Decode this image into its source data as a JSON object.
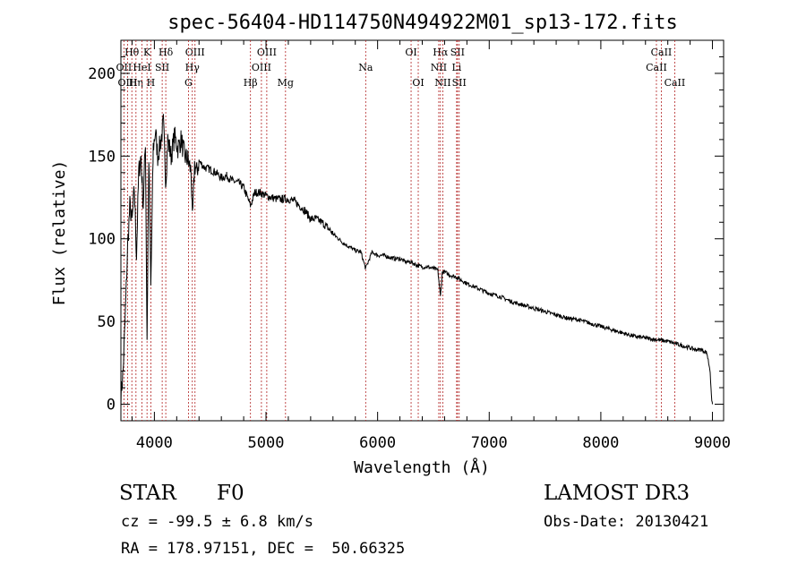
{
  "chart_data": {
    "type": "line",
    "title": "spec-56404-HD114750N494922M01_sp13-172.fits",
    "xlabel": "Wavelength (Å)",
    "ylabel": "Flux (relative)",
    "xlim": [
      3700,
      9100
    ],
    "ylim": [
      -10,
      220
    ],
    "xticks": [
      4000,
      5000,
      6000,
      7000,
      8000,
      9000
    ],
    "yticks": [
      0,
      50,
      100,
      150,
      200
    ],
    "series": [
      {
        "name": "flux",
        "x": [
          3700,
          3720,
          3740,
          3760,
          3780,
          3800,
          3820,
          3840,
          3860,
          3880,
          3900,
          3920,
          3934,
          3950,
          3968,
          3990,
          4010,
          4030,
          4060,
          4080,
          4102,
          4120,
          4150,
          4180,
          4210,
          4240,
          4270,
          4300,
          4330,
          4340,
          4360,
          4380,
          4400,
          4450,
          4500,
          4550,
          4600,
          4650,
          4700,
          4750,
          4800,
          4861,
          4900,
          4950,
          5000,
          5050,
          5100,
          5150,
          5200,
          5250,
          5300,
          5350,
          5400,
          5450,
          5500,
          5550,
          5600,
          5650,
          5700,
          5750,
          5800,
          5850,
          5893,
          5950,
          6000,
          6050,
          6100,
          6150,
          6200,
          6250,
          6300,
          6350,
          6400,
          6450,
          6500,
          6540,
          6563,
          6580,
          6600,
          6650,
          6700,
          6750,
          6800,
          6900,
          7000,
          7100,
          7200,
          7300,
          7400,
          7500,
          7600,
          7700,
          7800,
          7900,
          8000,
          8100,
          8200,
          8300,
          8400,
          8500,
          8600,
          8700,
          8800,
          8850,
          8900,
          8950,
          8980,
          8990,
          9000
        ],
        "y": [
          5,
          20,
          55,
          95,
          120,
          110,
          130,
          90,
          140,
          150,
          120,
          160,
          40,
          150,
          70,
          155,
          165,
          150,
          160,
          170,
          135,
          160,
          150,
          162,
          155,
          160,
          150,
          148,
          140,
          110,
          145,
          140,
          147,
          143,
          142,
          140,
          137,
          138,
          135,
          134,
          131,
          120,
          128,
          128,
          126,
          125,
          124,
          124,
          124,
          123,
          120,
          117,
          112,
          112,
          110,
          107,
          103,
          100,
          97,
          95,
          93,
          92,
          82,
          92,
          90,
          90,
          89,
          88,
          88,
          86,
          86,
          84,
          83,
          83,
          82,
          81,
          65,
          80,
          80,
          78,
          77,
          75,
          73,
          70,
          67,
          65,
          62,
          60,
          58,
          56,
          54,
          52,
          51,
          49,
          47,
          45,
          43,
          41,
          40,
          39,
          38,
          36,
          34,
          33,
          33,
          31,
          20,
          5,
          0
        ]
      }
    ],
    "lines": [
      {
        "label": "Hθ",
        "wavelength": 3798,
        "row": 1
      },
      {
        "label": "OII",
        "wavelength": 3727,
        "row": 2
      },
      {
        "label": "OIII",
        "wavelength": 3760,
        "row": 3
      },
      {
        "label": "Hη",
        "wavelength": 3835,
        "row": 3
      },
      {
        "label": "HeI",
        "wavelength": 3889,
        "row": 2
      },
      {
        "label": "K",
        "wavelength": 3934,
        "row": 1
      },
      {
        "label": "SII",
        "wavelength": 4070,
        "row": 2
      },
      {
        "label": "H",
        "wavelength": 3968,
        "row": 3
      },
      {
        "label": "Hδ",
        "wavelength": 4102,
        "row": 1
      },
      {
        "label": "OIII",
        "wavelength": 4364,
        "row": 1
      },
      {
        "label": "Hγ",
        "wavelength": 4340,
        "row": 2
      },
      {
        "label": "G",
        "wavelength": 4305,
        "row": 3
      },
      {
        "label": "OIII",
        "wavelength": 5007,
        "row": 1
      },
      {
        "label": "OIII",
        "wavelength": 4959,
        "row": 2
      },
      {
        "label": "Hβ",
        "wavelength": 4861,
        "row": 3
      },
      {
        "label": "Mg",
        "wavelength": 5175,
        "row": 3
      },
      {
        "label": "Na",
        "wavelength": 5893,
        "row": 2
      },
      {
        "label": "OI",
        "wavelength": 6300,
        "row": 1
      },
      {
        "label": "OI",
        "wavelength": 6364,
        "row": 3
      },
      {
        "label": "Hα",
        "wavelength": 6563,
        "row": 1
      },
      {
        "label": "SII",
        "wavelength": 6716,
        "row": 1
      },
      {
        "label": "NII",
        "wavelength": 6548,
        "row": 2
      },
      {
        "label": "Li",
        "wavelength": 6708,
        "row": 2
      },
      {
        "label": "NII",
        "wavelength": 6584,
        "row": 3
      },
      {
        "label": "SII",
        "wavelength": 6731,
        "row": 3
      },
      {
        "label": "CaII",
        "wavelength": 8542,
        "row": 1
      },
      {
        "label": "CaII",
        "wavelength": 8498,
        "row": 2
      },
      {
        "label": "CaII",
        "wavelength": 8662,
        "row": 3
      }
    ]
  },
  "info": {
    "object_class": "STAR",
    "subclass": "F0",
    "survey": "LAMOST DR3",
    "redshift": "cz = -99.5 ± 6.8 km/s",
    "obs_date": "Obs-Date: 20130421",
    "coords": "RA = 178.97151, DEC =  50.66325"
  },
  "colors": {
    "axis": "#000000",
    "spectrum": "#000000",
    "line_marker": "#b22222"
  }
}
